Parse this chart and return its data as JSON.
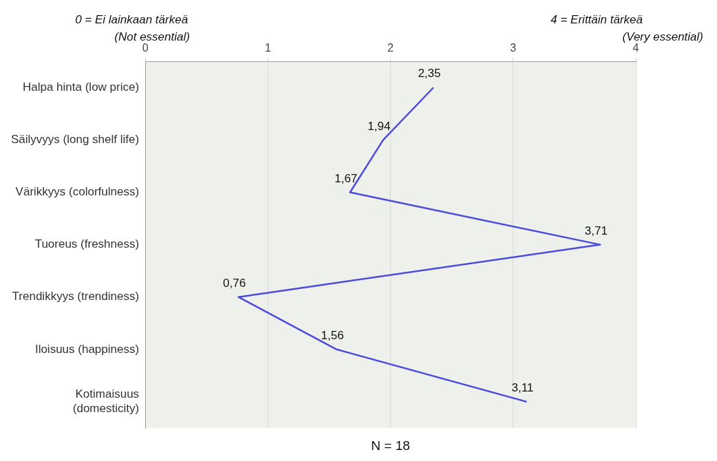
{
  "chart_data": {
    "type": "line",
    "orientation": "horizontal",
    "categories": [
      "Halpa hinta (low price)",
      "Säilyvyys (long shelf life)",
      "Värikkyys (colorfulness)",
      "Tuoreus (freshness)",
      "Trendikkyys (trendiness)",
      "Iloisuus (happiness)",
      "Kotimaisuus\n(domesticity)"
    ],
    "values": [
      2.35,
      1.94,
      1.67,
      3.71,
      0.76,
      1.56,
      3.11
    ],
    "value_labels": [
      "2,35",
      "1,94",
      "1,67",
      "3,71",
      "0,76",
      "1,56",
      "3,11"
    ],
    "color": "#4b4bdc",
    "marker": "none",
    "xlim": [
      0,
      4
    ],
    "xticks": [
      0,
      1,
      2,
      3,
      4
    ],
    "grid": "x",
    "legend": false,
    "annotations": [
      "0 = Ei lainkaan tärkeä\n(Not essential)",
      "4 = Erittäin tärkeä\n(Very essential)",
      "N = 18"
    ]
  }
}
